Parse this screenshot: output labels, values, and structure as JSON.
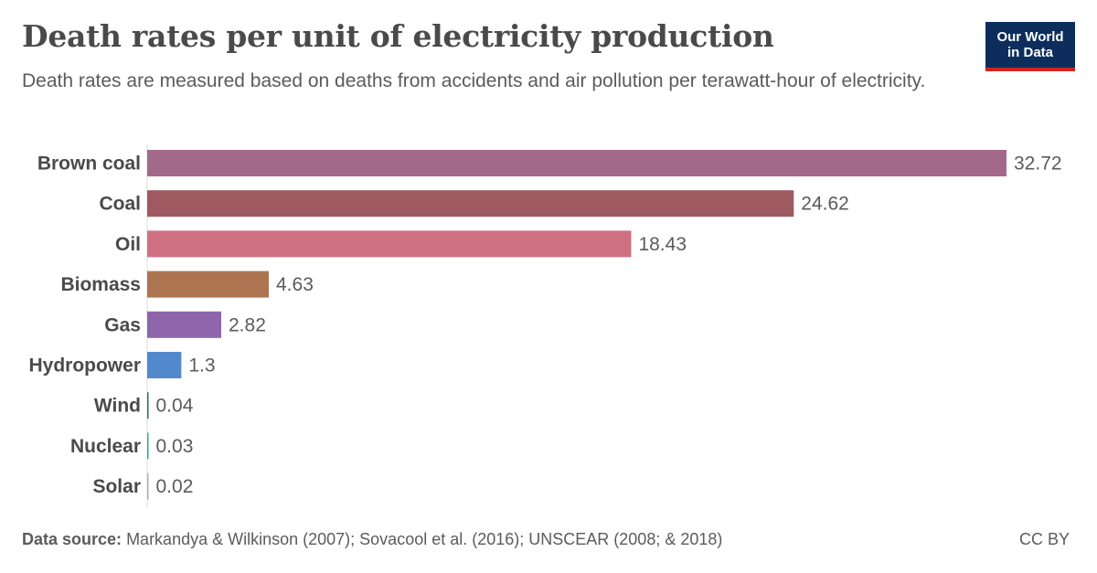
{
  "title": "Death rates per unit of electricity production",
  "subtitle": "Death rates are measured based on deaths from accidents and air pollution per terawatt-hour of electricity.",
  "logo": {
    "line1": "Our World",
    "line2": "in Data",
    "bg_color": "#0d2e5c",
    "accent_color": "#ce261e"
  },
  "footer": {
    "source_label": "Data source:",
    "source_text": "Markandya & Wilkinson (2007); Sovacool et al. (2016); UNSCEAR (2008; & 2018)",
    "license": "CC BY"
  },
  "chart_data": {
    "type": "bar",
    "orientation": "horizontal",
    "categories": [
      "Brown coal",
      "Coal",
      "Oil",
      "Biomass",
      "Gas",
      "Hydropower",
      "Wind",
      "Nuclear",
      "Solar"
    ],
    "values": [
      32.72,
      24.62,
      18.43,
      4.63,
      2.82,
      1.3,
      0.04,
      0.03,
      0.02
    ],
    "value_labels": [
      "32.72",
      "24.62",
      "18.43",
      "4.63",
      "2.82",
      "1.3",
      "0.04",
      "0.03",
      "0.02"
    ],
    "colors": [
      "#a2698a",
      "#9e5a60",
      "#cf7082",
      "#ad7451",
      "#8e65ab",
      "#5289cc",
      "#2a6f6f",
      "#3aa3a3",
      "#c8a3a8"
    ],
    "xlim": [
      0,
      32.72
    ],
    "grid": false,
    "legend": "none"
  }
}
